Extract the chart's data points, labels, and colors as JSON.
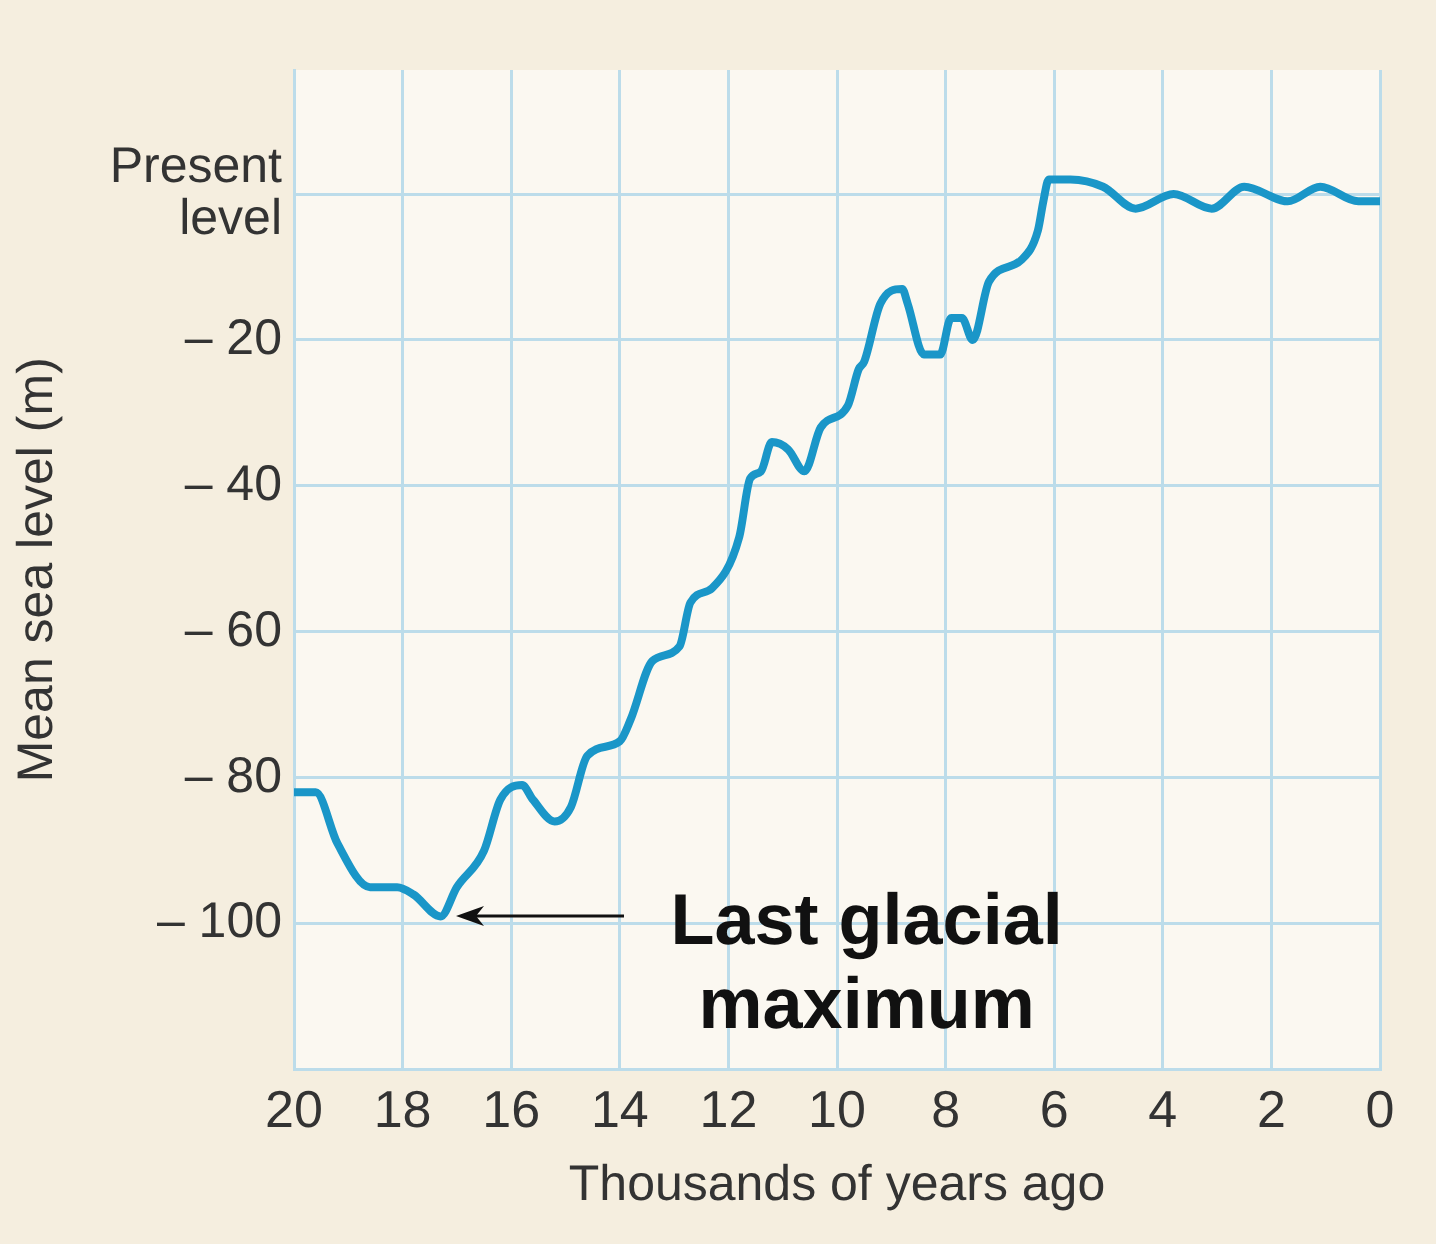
{
  "chart_data": {
    "type": "line",
    "xlabel": "Thousands of years ago",
    "ylabel": "Mean sea level (m)",
    "xlim": [
      20,
      0
    ],
    "xticks": [
      20,
      18,
      16,
      14,
      12,
      10,
      8,
      6,
      4,
      2,
      0
    ],
    "ylim": [
      -120,
      17
    ],
    "yticks": [
      {
        "value": 0,
        "label": "Present level"
      },
      {
        "value": -20,
        "label": "– 20"
      },
      {
        "value": -40,
        "label": "– 40"
      },
      {
        "value": -60,
        "label": "– 60"
      },
      {
        "value": -80,
        "label": "– 80"
      },
      {
        "value": -100,
        "label": "– 100"
      }
    ],
    "grid": true,
    "marker": "none",
    "line_style": "solid",
    "annotations": [
      "Last glacial maximum"
    ],
    "series": [
      {
        "color": "#1a96c8",
        "x": [
          20,
          19.6,
          19.2,
          18.6,
          18.1,
          17.8,
          17.3,
          17,
          16.5,
          16.2,
          15.8,
          15.6,
          15.2,
          14.9,
          14.6,
          14,
          13.8,
          13.4,
          12.9,
          12.7,
          12.3,
          11.8,
          11.6,
          11.4,
          11.2,
          10.9,
          10.6,
          10.3,
          9.8,
          9.6,
          9.5,
          9.2,
          8.8,
          8.7,
          8.4,
          8.1,
          7.9,
          7.7,
          7.5,
          7.2,
          6.6,
          6.3,
          6.2,
          6.1,
          5.7,
          5.1,
          4.5,
          3.8,
          3.1,
          2.5,
          1.7,
          1.1,
          0.4,
          0
        ],
        "values": [
          -82,
          -82,
          -89,
          -95,
          -95,
          -96,
          -99,
          -95,
          -90,
          -83,
          -81,
          -83,
          -86,
          -84,
          -77,
          -75,
          -72,
          -64,
          -62,
          -56,
          -54,
          -47,
          -39,
          -38,
          -34,
          -35,
          -38,
          -32,
          -29,
          -24,
          -23,
          -15,
          -13,
          -15,
          -22,
          -22,
          -17,
          -17,
          -20,
          -12,
          -9,
          -5,
          -1,
          2,
          2,
          1,
          -2,
          0,
          -2,
          1,
          -1,
          1,
          -1,
          -1
        ]
      }
    ]
  }
}
